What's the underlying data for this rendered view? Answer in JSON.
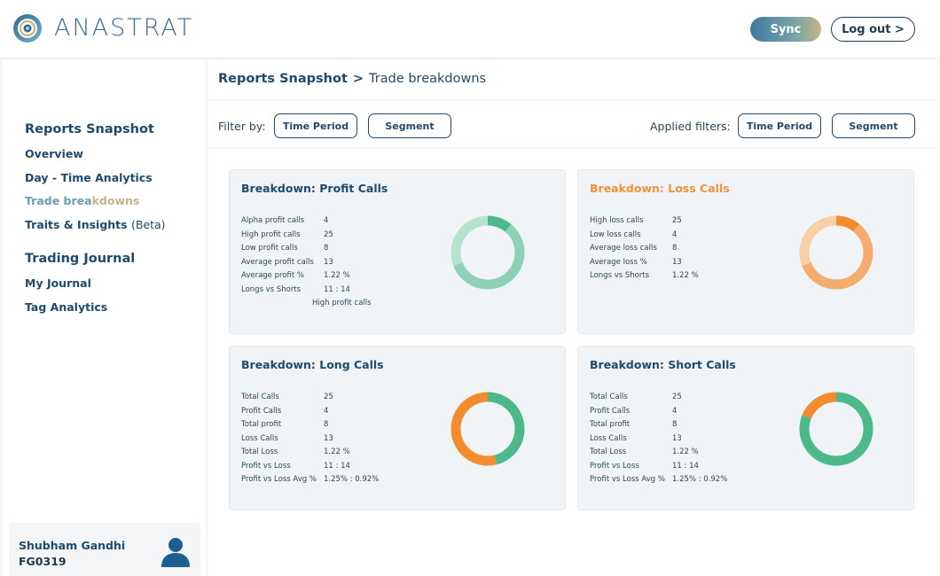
{
  "app": {
    "brand": "ANASTRAT"
  },
  "header": {
    "sync_label": "Sync",
    "logout_label": "Log out >"
  },
  "sidebar": {
    "section1_title": "Reports Snapshot",
    "items1": [
      {
        "label": "Overview"
      },
      {
        "label": "Day - Time Analytics"
      },
      {
        "label_a": "Trade brea",
        "label_b": "kdowns"
      },
      {
        "label": "Traits & Insights",
        "suffix": "(Beta)"
      }
    ],
    "section2_title": "Trading Journal",
    "items2": [
      {
        "label": "My Journal"
      },
      {
        "label": "Tag Analytics"
      }
    ],
    "user": {
      "name": "Shubham Gandhi",
      "id": "FG0319"
    }
  },
  "breadcrumb": {
    "parent": "Reports Snapshot",
    "separator": ">",
    "current": "Trade breakdowns"
  },
  "filters": {
    "filter_by_label": "Filter by:",
    "filter_time": "Time Period",
    "filter_segment": "Segment",
    "applied_label": "Applied filters:",
    "applied_time": "Time Period",
    "applied_segment": "Segment"
  },
  "cards": [
    {
      "title": "Breakdown: Profit Calls",
      "title_color": "#1e4a6e",
      "rows": [
        {
          "label": "Alpha profit calls",
          "value": "4"
        },
        {
          "label": "High profit calls",
          "value": "25"
        },
        {
          "label": "Low profit calls",
          "value": "8"
        },
        {
          "label": "Average profit calls",
          "value": "13"
        },
        {
          "label": "Average profit %",
          "value": "1.22 %"
        },
        {
          "label": "Longs vs Shorts",
          "value": "11 : 14"
        }
      ],
      "note": "High profit calls",
      "donut": {
        "fraction": 0.11,
        "colors": [
          "#4db88a",
          "#8fd1b6",
          "#b7e2d0"
        ],
        "segments": [
          0.11,
          0.58,
          0.31
        ]
      }
    },
    {
      "title": "Breakdown: Loss Calls",
      "title_color": "#f0923a",
      "rows": [
        {
          "label": "High loss calls",
          "value": "25"
        },
        {
          "label": "Low loss calls",
          "value": "4"
        },
        {
          "label": "Average loss calls",
          "value": "8"
        },
        {
          "label": "Average loss %",
          "value": "13"
        },
        {
          "label": "Longs vs Shorts",
          "value": "1.22 %"
        }
      ],
      "note": "",
      "donut": {
        "fraction": 0.11,
        "colors": [
          "#f28c2e",
          "#f4ad6c",
          "#f8cfa6"
        ],
        "segments": [
          0.11,
          0.58,
          0.31
        ]
      }
    },
    {
      "title": "Breakdown: Long Calls",
      "title_color": "#1e4a6e",
      "rows": [
        {
          "label": "Total Calls",
          "value": "25"
        },
        {
          "label": "Profit Calls",
          "value": "4"
        },
        {
          "label": "Total profit",
          "value": "8"
        },
        {
          "label": "Loss Calls",
          "value": "13"
        },
        {
          "label": "Total Loss",
          "value": "1.22 %"
        },
        {
          "label": "Profit vs Loss",
          "value": "11 : 14"
        },
        {
          "label": "Profit vs Loss Avg %",
          "value": "1.25% : 0.92%"
        }
      ],
      "note": "",
      "donut": {
        "colors": [
          "#4db88a",
          "#f28c2e"
        ],
        "segments": [
          0.46,
          0.54
        ]
      }
    },
    {
      "title": "Breakdown: Short Calls",
      "title_color": "#1e4a6e",
      "rows": [
        {
          "label": "Total Calls",
          "value": "25"
        },
        {
          "label": "Profit Calls",
          "value": "4"
        },
        {
          "label": "Total profit",
          "value": "8"
        },
        {
          "label": "Loss Calls",
          "value": "13"
        },
        {
          "label": "Total Loss",
          "value": "1.22 %"
        },
        {
          "label": "Profit vs Loss",
          "value": "11 : 14"
        },
        {
          "label": "Profit vs Loss Avg %",
          "value": "1.25% : 0.92%"
        }
      ],
      "note": "",
      "donut": {
        "colors": [
          "#4db88a",
          "#f28c2e"
        ],
        "segments": [
          0.81,
          0.19
        ]
      }
    }
  ]
}
